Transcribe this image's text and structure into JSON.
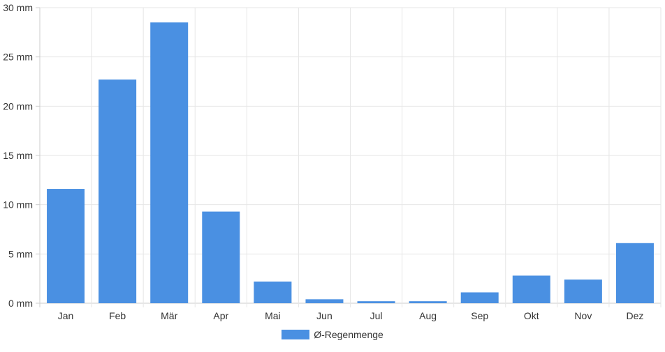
{
  "chart_data": {
    "type": "bar",
    "categories": [
      "Jan",
      "Feb",
      "Mär",
      "Apr",
      "Mai",
      "Jun",
      "Jul",
      "Aug",
      "Sep",
      "Okt",
      "Nov",
      "Dez"
    ],
    "series": [
      {
        "name": "Ø-Regenmenge",
        "values": [
          11.6,
          22.7,
          28.5,
          9.3,
          2.2,
          0.4,
          0.2,
          0.2,
          1.1,
          2.8,
          2.4,
          6.1
        ],
        "color": "#4a90e2"
      }
    ],
    "ylim": [
      0,
      30
    ],
    "yticks": [
      0,
      5,
      10,
      15,
      20,
      25,
      30
    ],
    "ytick_labels": [
      "0 mm",
      "5 mm",
      "10 mm",
      "15 mm",
      "20 mm",
      "25 mm",
      "30 mm"
    ],
    "grid": true,
    "legend_position": "bottom",
    "xlabel": "",
    "ylabel": ""
  }
}
